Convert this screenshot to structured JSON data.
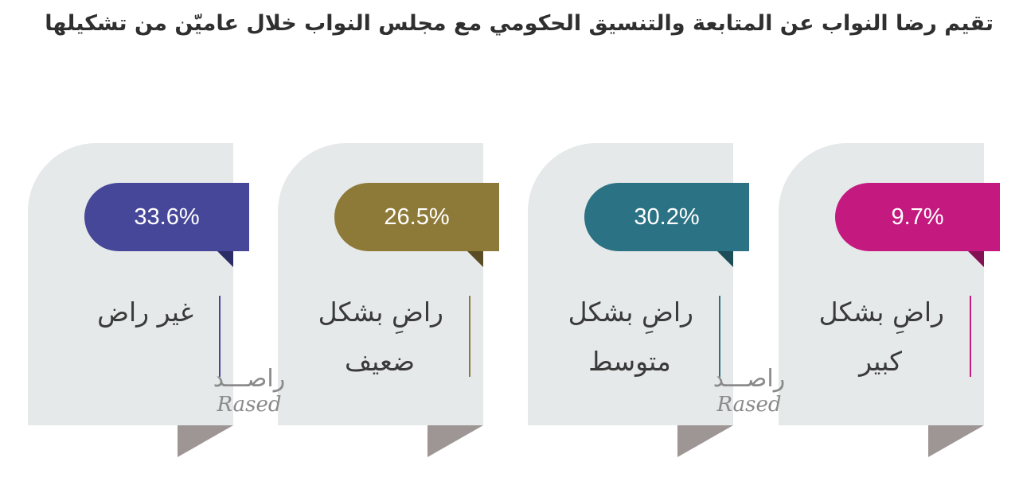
{
  "title": "تقيم رضا النواب عن المتابعة والتنسيق الحكومي مع مجلس النواب خلال عاميّن من تشكيلها",
  "watermark": {
    "arabic": "راصـــد",
    "latin": "Rased"
  },
  "chart_data": {
    "type": "bar",
    "categories": [
      "غير راض",
      "راضِ بشكل ضعيف",
      "راضِ بشكل متوسط",
      "راضِ بشكل كبير"
    ],
    "values": [
      33.6,
      26.5,
      30.2,
      9.7
    ],
    "value_labels": [
      "33.6%",
      "26.5%",
      "30.2%",
      "9.7%"
    ],
    "label_lines": [
      [
        "غير راض"
      ],
      [
        "راضِ بشكل",
        "ضعيف"
      ],
      [
        "راضِ بشكل",
        "متوسط"
      ],
      [
        "راضِ بشكل",
        "كبير"
      ]
    ],
    "colors": [
      "#47479a",
      "#8e7a38",
      "#2b7284",
      "#c4197f"
    ],
    "shadow_colors": [
      "#2c2c66",
      "#5a4c24",
      "#1c4d59",
      "#851155"
    ],
    "unit": "%"
  }
}
